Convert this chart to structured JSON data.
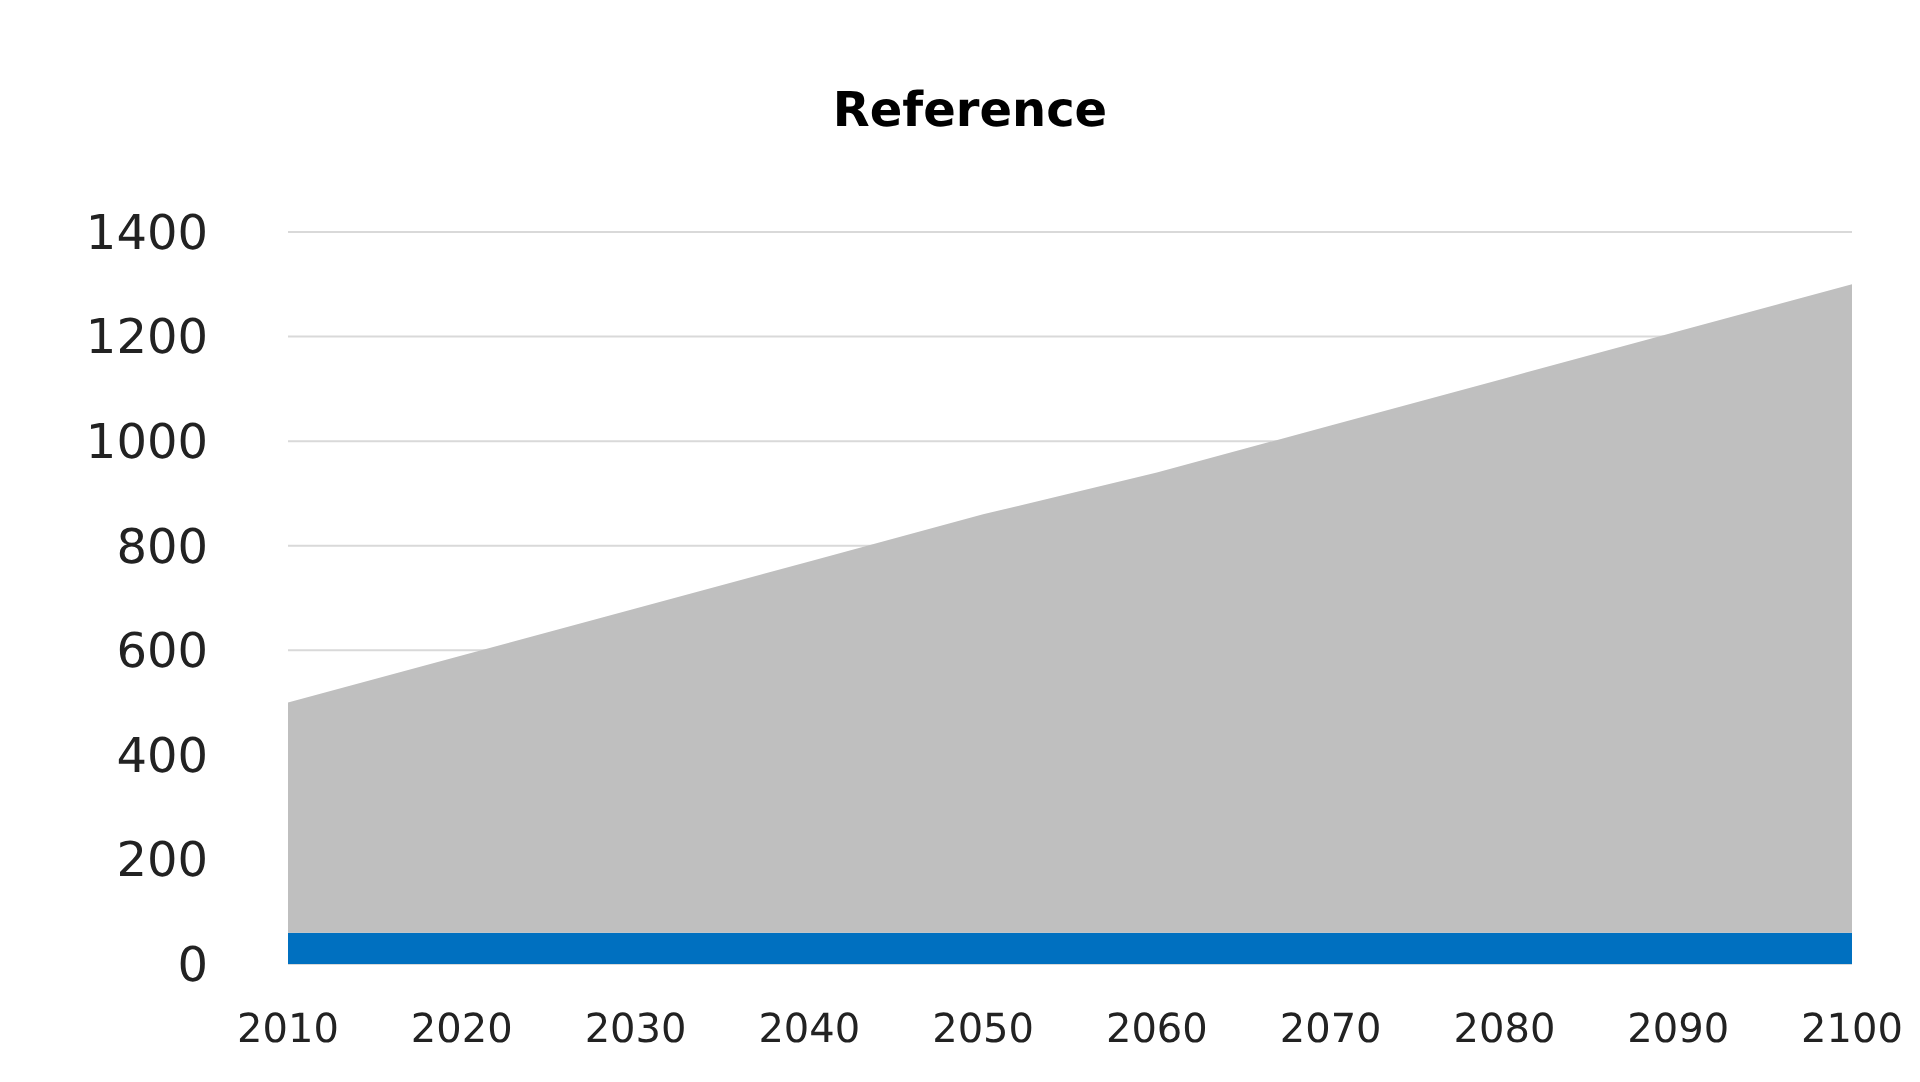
{
  "chart_data": {
    "type": "area",
    "title": "Reference",
    "stacked": true,
    "x": [
      2010,
      2020,
      2030,
      2040,
      2050,
      2060,
      2070,
      2080,
      2090,
      2100
    ],
    "series": [
      {
        "color": "#0070c0",
        "values": [
          60,
          60,
          60,
          60,
          60,
          60,
          60,
          60,
          60,
          60
        ]
      },
      {
        "color": "#bfbfbf",
        "values": [
          440,
          530,
          620,
          710,
          800,
          880,
          970,
          1060,
          1150,
          1240
        ]
      }
    ],
    "xlim": [
      2010,
      2100
    ],
    "xticks": [
      2010,
      2020,
      2030,
      2040,
      2050,
      2060,
      2070,
      2080,
      2090,
      2100
    ],
    "ylim": [
      0,
      1400
    ],
    "yticks": [
      0,
      200,
      400,
      600,
      800,
      1000,
      1200,
      1400
    ],
    "grid": "y"
  }
}
